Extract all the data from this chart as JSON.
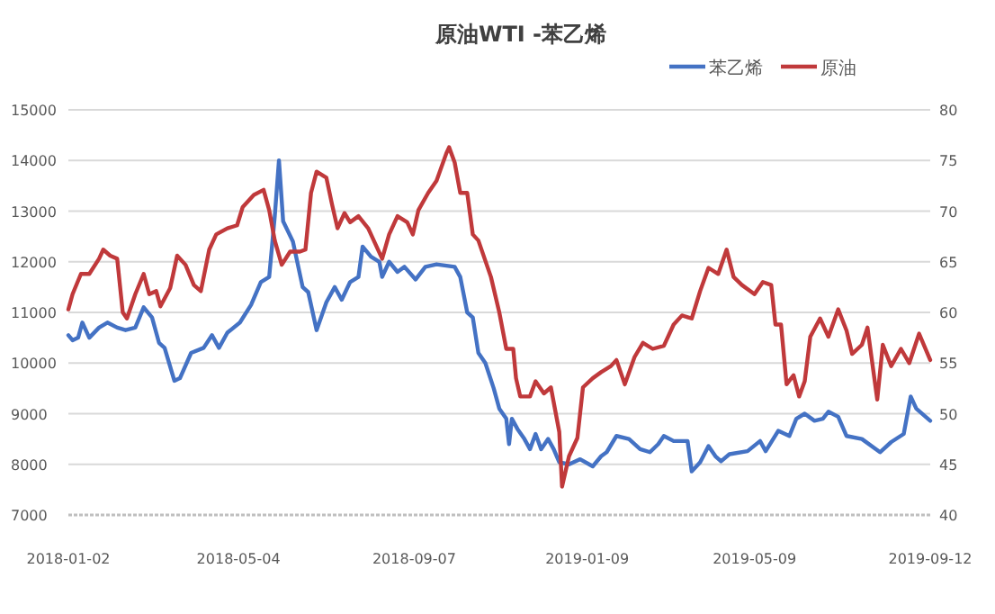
{
  "chart_data": {
    "type": "line",
    "title": "原油WTI -苯乙烯",
    "legend": "top right",
    "grid": "y",
    "marker": "none",
    "line_style": "solid",
    "xlim": [
      "2018-01-02",
      "2019-09-12"
    ],
    "xticks": [
      "2018-01-02",
      "2018-05-04",
      "2018-09-07",
      "2019-01-09",
      "2019-05-09",
      "2019-09-12"
    ],
    "ylim": [
      7000,
      15000
    ],
    "yticks": [
      7000,
      8000,
      9000,
      10000,
      11000,
      12000,
      13000,
      14000,
      15000
    ],
    "y2lim": [
      40,
      80
    ],
    "y2ticks": [
      40,
      45,
      50,
      55,
      60,
      65,
      70,
      75,
      80
    ],
    "series": [
      {
        "name": "苯乙烯",
        "color": "#4472c4",
        "x": [
          "2018-01-02",
          "2018-01-05",
          "2018-01-09",
          "2018-01-12",
          "2018-01-17",
          "2018-01-24",
          "2018-01-30",
          "2018-02-06",
          "2018-02-12",
          "2018-02-19",
          "2018-02-25",
          "2018-03-03",
          "2018-03-08",
          "2018-03-12",
          "2018-03-19",
          "2018-03-23",
          "2018-03-31",
          "2018-04-09",
          "2018-04-15",
          "2018-04-20",
          "2018-04-26",
          "2018-05-05",
          "2018-05-13",
          "2018-05-20",
          "2018-05-26",
          "2018-05-30",
          "2018-06-02",
          "2018-06-05",
          "2018-06-12",
          "2018-06-19",
          "2018-06-23",
          "2018-06-29",
          "2018-07-06",
          "2018-07-12",
          "2018-07-17",
          "2018-07-23",
          "2018-07-29",
          "2018-08-01",
          "2018-08-07",
          "2018-08-13",
          "2018-08-15",
          "2018-08-20",
          "2018-08-26",
          "2018-08-31",
          "2018-09-08",
          "2018-09-15",
          "2018-09-23",
          "2018-10-06",
          "2018-10-10",
          "2018-10-15",
          "2018-10-19",
          "2018-10-23",
          "2018-10-28",
          "2018-11-03",
          "2018-11-07",
          "2018-11-12",
          "2018-11-14",
          "2018-11-16",
          "2018-11-20",
          "2018-11-25",
          "2018-11-29",
          "2018-12-03",
          "2018-12-07",
          "2018-12-12",
          "2018-12-16",
          "2018-12-20",
          "2018-12-27",
          "2019-01-04",
          "2019-01-13",
          "2019-01-19",
          "2019-01-23",
          "2019-01-30",
          "2019-02-08",
          "2019-02-16",
          "2019-02-23",
          "2019-03-01",
          "2019-03-05",
          "2019-03-12",
          "2019-03-22",
          "2019-03-25",
          "2019-03-31",
          "2019-04-06",
          "2019-04-11",
          "2019-04-15",
          "2019-04-21",
          "2019-05-04",
          "2019-05-13",
          "2019-05-17",
          "2019-05-26",
          "2019-06-03",
          "2019-06-08",
          "2019-06-14",
          "2019-06-21",
          "2019-06-27",
          "2019-07-01",
          "2019-07-08",
          "2019-07-14",
          "2019-07-25",
          "2019-08-07",
          "2019-08-15",
          "2019-08-24",
          "2019-08-29",
          "2019-09-02",
          "2019-09-12"
        ],
        "values": [
          10550,
          10450,
          10500,
          10800,
          10500,
          10700,
          10800,
          10700,
          10650,
          10700,
          11100,
          10900,
          10400,
          10300,
          9650,
          9700,
          10200,
          10300,
          10550,
          10300,
          10600,
          10800,
          11150,
          11600,
          11700,
          12900,
          14000,
          12800,
          12400,
          11500,
          11400,
          10650,
          11200,
          11500,
          11250,
          11600,
          11700,
          12300,
          12100,
          12000,
          11700,
          12000,
          11800,
          11900,
          11650,
          11900,
          11950,
          11900,
          11700,
          11000,
          10900,
          10200,
          10000,
          9500,
          9100,
          8900,
          8400,
          8900,
          8700,
          8500,
          8300,
          8600,
          8300,
          8500,
          8300,
          8040,
          8000,
          8100,
          7960,
          8160,
          8240,
          8560,
          8500,
          8300,
          8240,
          8400,
          8560,
          8460,
          8460,
          7860,
          8040,
          8360,
          8160,
          8060,
          8200,
          8260,
          8460,
          8260,
          8660,
          8560,
          8900,
          9000,
          8860,
          8900,
          9040,
          8940,
          8560,
          8500,
          8240,
          8440,
          8600,
          9340,
          9100,
          8860
        ]
      },
      {
        "name": "原油",
        "color": "#c0393b",
        "axis": "y2",
        "x": [
          "2018-01-02",
          "2018-01-05",
          "2018-01-11",
          "2018-01-17",
          "2018-01-24",
          "2018-01-27",
          "2018-02-01",
          "2018-02-06",
          "2018-02-10",
          "2018-02-13",
          "2018-02-19",
          "2018-02-25",
          "2018-03-01",
          "2018-03-06",
          "2018-03-09",
          "2018-03-16",
          "2018-03-21",
          "2018-03-27",
          "2018-04-02",
          "2018-04-07",
          "2018-04-13",
          "2018-04-18",
          "2018-04-26",
          "2018-05-03",
          "2018-05-07",
          "2018-05-11",
          "2018-05-15",
          "2018-05-22",
          "2018-05-26",
          "2018-05-30",
          "2018-06-04",
          "2018-06-10",
          "2018-06-17",
          "2018-06-21",
          "2018-06-25",
          "2018-06-29",
          "2018-07-06",
          "2018-07-10",
          "2018-07-14",
          "2018-07-19",
          "2018-07-23",
          "2018-07-29",
          "2018-08-05",
          "2018-08-09",
          "2018-08-15",
          "2018-08-20",
          "2018-08-26",
          "2018-09-02",
          "2018-09-06",
          "2018-09-10",
          "2018-09-17",
          "2018-09-23",
          "2018-09-30",
          "2018-10-02",
          "2018-10-06",
          "2018-10-10",
          "2018-10-15",
          "2018-10-19",
          "2018-10-23",
          "2018-11-01",
          "2018-11-07",
          "2018-11-12",
          "2018-11-17",
          "2018-11-19",
          "2018-11-22",
          "2018-11-29",
          "2018-12-03",
          "2018-12-09",
          "2018-12-14",
          "2018-12-20",
          "2018-12-22",
          "2018-12-27",
          "2019-01-02",
          "2019-01-06",
          "2019-01-13",
          "2019-01-19",
          "2019-01-26",
          "2019-01-30",
          "2019-02-05",
          "2019-02-12",
          "2019-02-18",
          "2019-02-25",
          "2019-03-05",
          "2019-03-12",
          "2019-03-18",
          "2019-03-25",
          "2019-03-31",
          "2019-04-06",
          "2019-04-13",
          "2019-04-19",
          "2019-04-24",
          "2019-04-30",
          "2019-05-09",
          "2019-05-15",
          "2019-05-21",
          "2019-05-24",
          "2019-05-28",
          "2019-06-01",
          "2019-06-06",
          "2019-06-10",
          "2019-06-14",
          "2019-06-18",
          "2019-06-25",
          "2019-07-01",
          "2019-07-08",
          "2019-07-14",
          "2019-07-18",
          "2019-07-25",
          "2019-07-29",
          "2019-08-05",
          "2019-08-09",
          "2019-08-15",
          "2019-08-22",
          "2019-08-28",
          "2019-09-04",
          "2019-09-12"
        ],
        "values": [
          60.3,
          61.8,
          63.8,
          63.8,
          65.3,
          66.2,
          65.6,
          65.3,
          60,
          59.4,
          61.8,
          63.8,
          61.8,
          62.1,
          60.6,
          62.4,
          65.6,
          64.7,
          62.7,
          62.1,
          66.2,
          67.7,
          68.3,
          68.6,
          70.4,
          71,
          71.6,
          72.1,
          70.1,
          67.1,
          64.7,
          66,
          66,
          66.2,
          71.8,
          73.9,
          73.3,
          70.7,
          68.3,
          69.8,
          68.9,
          69.5,
          68.3,
          67.1,
          65.3,
          67.7,
          69.5,
          68.9,
          67.7,
          70.1,
          71.8,
          73,
          75.7,
          76.3,
          74.8,
          71.8,
          71.8,
          67.7,
          67.1,
          63.5,
          60,
          56.4,
          56.4,
          53.5,
          51.7,
          51.7,
          53.2,
          52,
          52.6,
          48.2,
          42.8,
          45.8,
          47.6,
          52.6,
          53.5,
          54.1,
          54.7,
          55.3,
          52.9,
          55.6,
          57,
          56.4,
          56.7,
          58.8,
          59.7,
          59.4,
          62.1,
          64.4,
          63.8,
          66.2,
          63.5,
          62.7,
          61.8,
          63,
          62.7,
          58.8,
          58.8,
          52.9,
          53.8,
          51.7,
          53.2,
          57.6,
          59.4,
          57.6,
          60.3,
          58.2,
          55.9,
          56.8,
          58.5,
          51.4,
          56.8,
          54.7,
          56.4,
          55,
          57.9,
          55.3
        ]
      }
    ]
  }
}
